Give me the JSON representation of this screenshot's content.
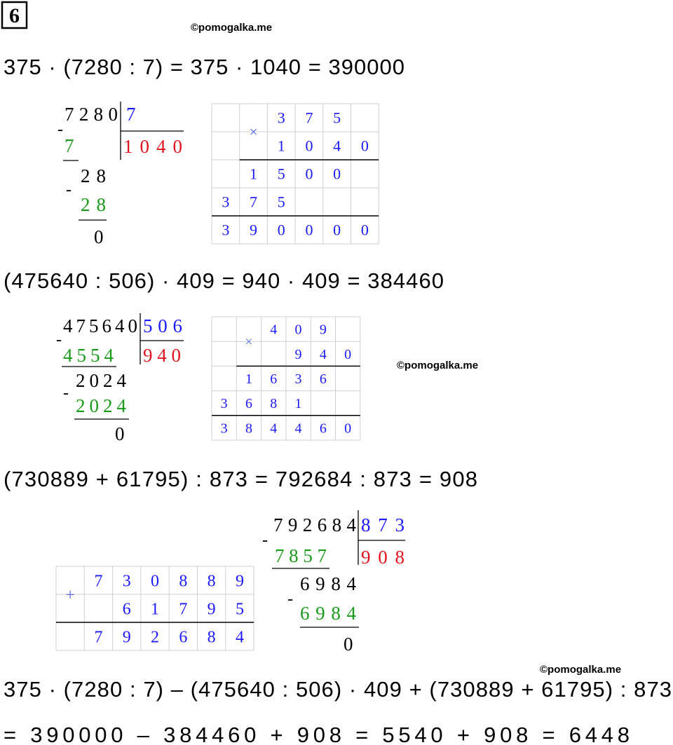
{
  "header": {
    "number": "6"
  },
  "watermarks": [
    "©pomogalka.me",
    "©pomogalka.me",
    "©pomogalka.me"
  ],
  "equations": [
    "375 · (7280 : 7) = 375 · 1040 = 390000",
    "(475640 : 506) · 409 = 940 · 409 = 384460",
    "(730889 + 61795) : 873 = 792684 : 873 = 908",
    "375 · (7280 : 7) – (475640 : 506) · 409 + (730889 + 61795) : 873",
    "= 390000 – 384460 + 908 = 5540 + 908 = 6448"
  ],
  "divisions": [
    {
      "minus": "-",
      "dividend": "7280",
      "divisor": "7",
      "quotient": "1040",
      "subtrahends": [
        "7",
        "28"
      ],
      "remainders": [
        "28",
        "0"
      ]
    },
    {
      "minus": "-",
      "dividend": "475640",
      "divisor": "506",
      "quotient": "940",
      "subtrahends": [
        "4554",
        "2024"
      ],
      "remainders": [
        "2024",
        "0"
      ]
    },
    {
      "minus": "-",
      "dividend": "792684",
      "divisor": "873",
      "quotient": "908",
      "subtrahends": [
        "7857",
        "6984"
      ],
      "remainders": [
        "6984",
        "0"
      ]
    }
  ],
  "grids": [
    {
      "sign": "×",
      "rows": [
        [
          null,
          null,
          "3",
          "7",
          "5",
          null
        ],
        [
          null,
          null,
          "1",
          "0",
          "4",
          "0"
        ],
        [
          null,
          "1",
          "5",
          "0",
          "0",
          null
        ],
        [
          "3",
          "7",
          "5",
          null,
          null,
          null
        ],
        [
          "3",
          "9",
          "0",
          "0",
          "0",
          "0"
        ]
      ]
    },
    {
      "sign": "×",
      "rows": [
        [
          null,
          null,
          "4",
          "0",
          "9",
          null
        ],
        [
          null,
          null,
          null,
          "9",
          "4",
          "0"
        ],
        [
          null,
          "1",
          "6",
          "3",
          "6",
          null
        ],
        [
          "3",
          "6",
          "8",
          "1",
          null,
          null
        ],
        [
          "3",
          "8",
          "4",
          "4",
          "6",
          "0"
        ]
      ]
    },
    {
      "sign": "+",
      "rows": [
        [
          null,
          "7",
          "3",
          "0",
          "8",
          "8",
          "9"
        ],
        [
          null,
          null,
          "6",
          "1",
          "7",
          "9",
          "5"
        ],
        [
          null,
          "7",
          "9",
          "2",
          "6",
          "8",
          "4"
        ]
      ]
    }
  ]
}
